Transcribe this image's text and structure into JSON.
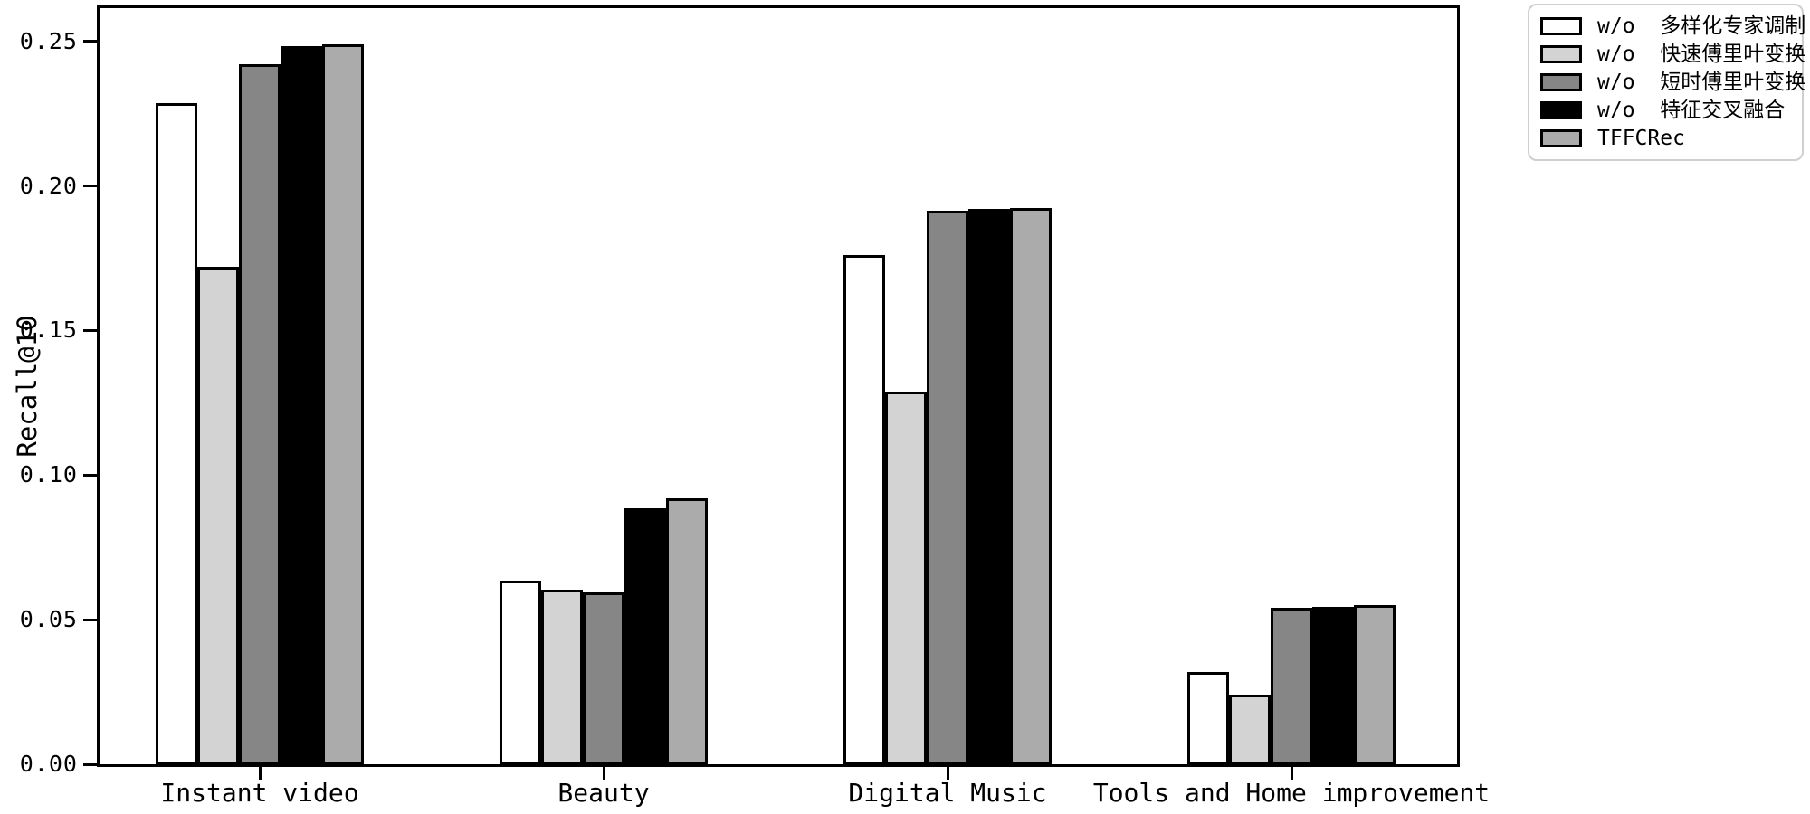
{
  "chart_data": {
    "type": "bar",
    "title": "",
    "xlabel": "",
    "ylabel": "Recall@10",
    "ylim": [
      0,
      0.2615
    ],
    "grid": false,
    "background_color": "#ffffff",
    "bar_edge_color": "#000000",
    "yticks": [
      {
        "value": 0.0,
        "label": "0.00"
      },
      {
        "value": 0.05,
        "label": "0.05"
      },
      {
        "value": 0.1,
        "label": "0.10"
      },
      {
        "value": 0.15,
        "label": "0.15"
      },
      {
        "value": 0.2,
        "label": "0.20"
      },
      {
        "value": 0.25,
        "label": "0.25"
      }
    ],
    "categories": [
      "Instant video",
      "Beauty",
      "Digital Music",
      "Tools and Home improvement"
    ],
    "series": [
      {
        "name": "w/o  多样化专家调制",
        "color": "#ffffff",
        "values": [
          0.2285,
          0.0635,
          0.176,
          0.032
        ]
      },
      {
        "name": "w/o  快速傅里叶变换",
        "color": "#d3d3d3",
        "values": [
          0.172,
          0.0605,
          0.129,
          0.024
        ]
      },
      {
        "name": "w/o  短时傅里叶变换",
        "color": "#868686",
        "values": [
          0.242,
          0.0595,
          0.1915,
          0.054
        ]
      },
      {
        "name": "w/o  特征交叉融合",
        "color": "#000000",
        "values": [
          0.2485,
          0.0885,
          0.192,
          0.0545
        ]
      },
      {
        "name": "TFFCRec",
        "color": "#ababab",
        "values": [
          0.249,
          0.092,
          0.1925,
          0.055
        ]
      }
    ],
    "legend": {
      "position": "upper-right-outside",
      "frame_color": "#cfcfcf",
      "swatch_edge_color": "#000000"
    }
  }
}
